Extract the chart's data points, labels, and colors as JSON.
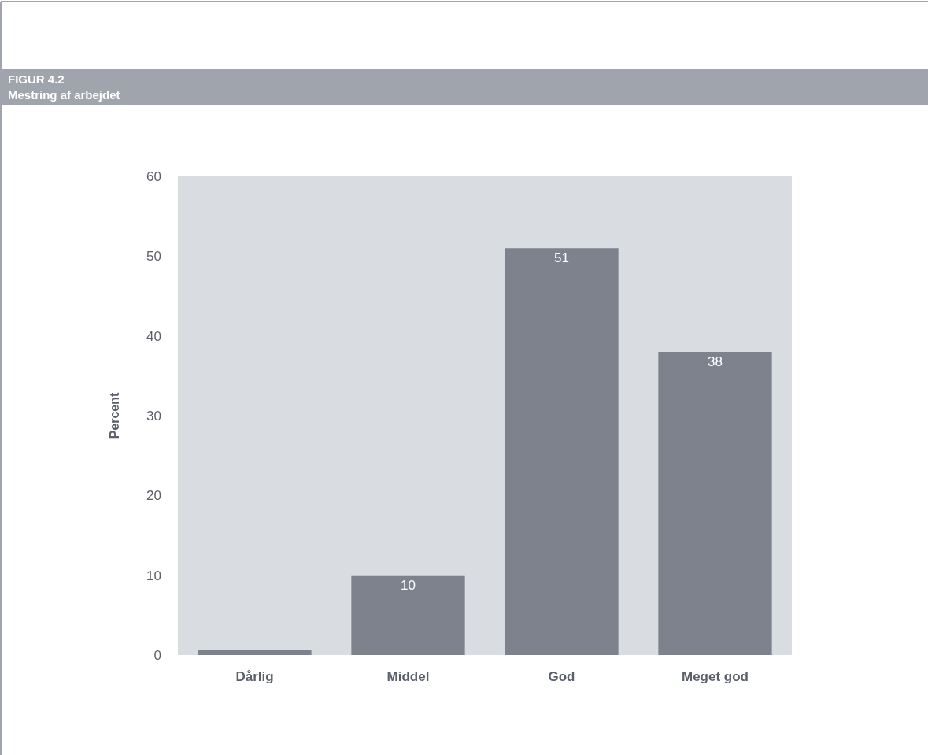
{
  "chart_data": {
    "type": "bar",
    "title": "FIGUR 4.2",
    "subtitle": "Mestring af arbejdet",
    "ylabel": "Percent",
    "categories": [
      "Dårlig",
      "Middel",
      "God",
      "Meget god"
    ],
    "values": [
      0.6,
      10,
      51,
      38
    ],
    "value_labels": [
      null,
      "10",
      "51",
      "38"
    ],
    "color": "#7d828c",
    "ylim": [
      0,
      60
    ],
    "yticks": [
      0,
      10,
      20,
      30,
      40,
      50,
      60
    ],
    "grid": false,
    "legend": false
  }
}
